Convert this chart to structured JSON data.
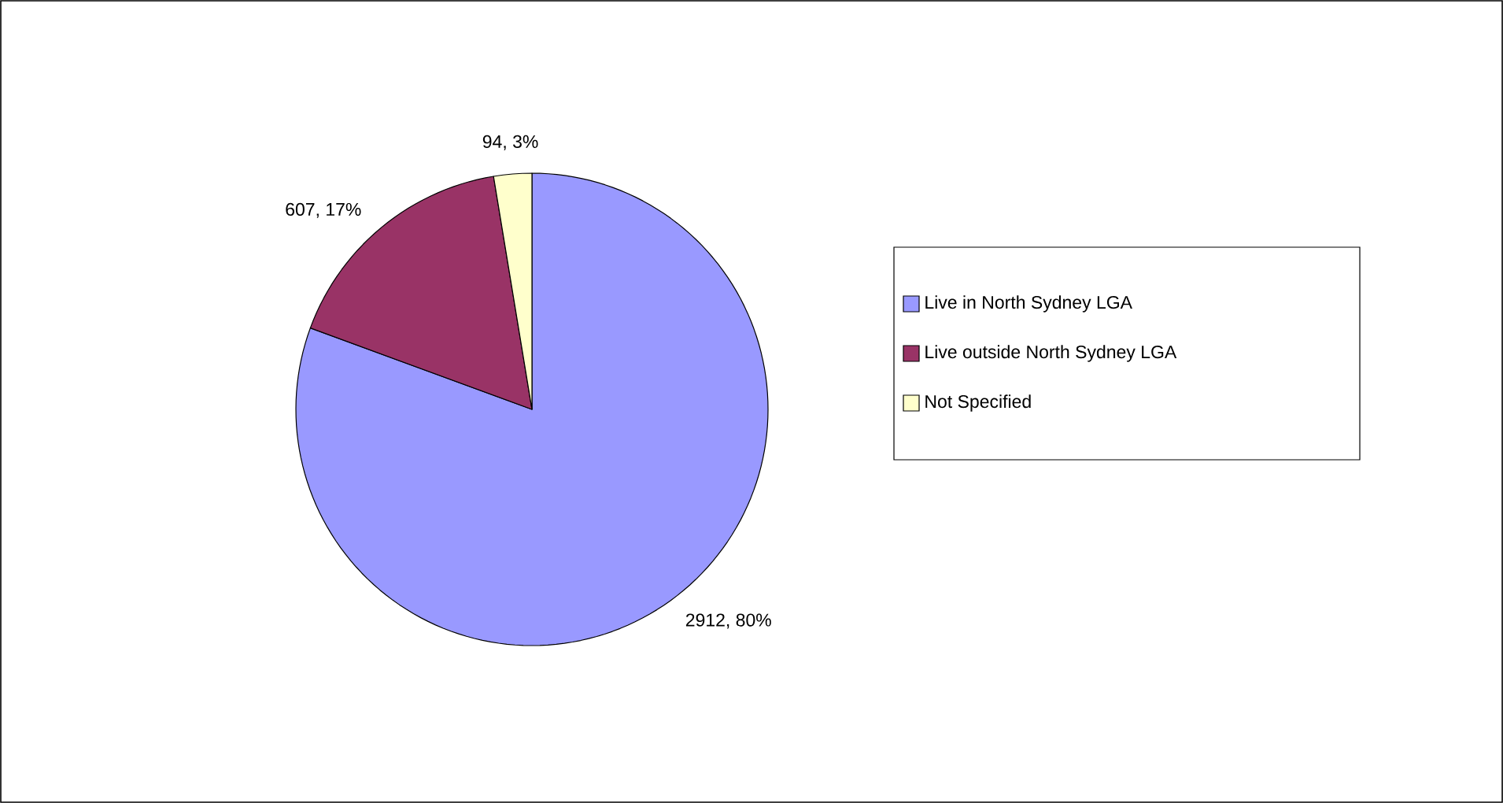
{
  "chart_data": {
    "type": "pie",
    "categories": [
      "Live in North Sydney LGA",
      "Live outside North Sydney LGA",
      "Not Specified"
    ],
    "values": [
      2912,
      607,
      94
    ],
    "colors": [
      "#9999ff",
      "#993366",
      "#ffffcc"
    ],
    "value_labels": [
      "2912, 80%",
      "607, 17%",
      "94, 3%"
    ],
    "legend": "right"
  }
}
